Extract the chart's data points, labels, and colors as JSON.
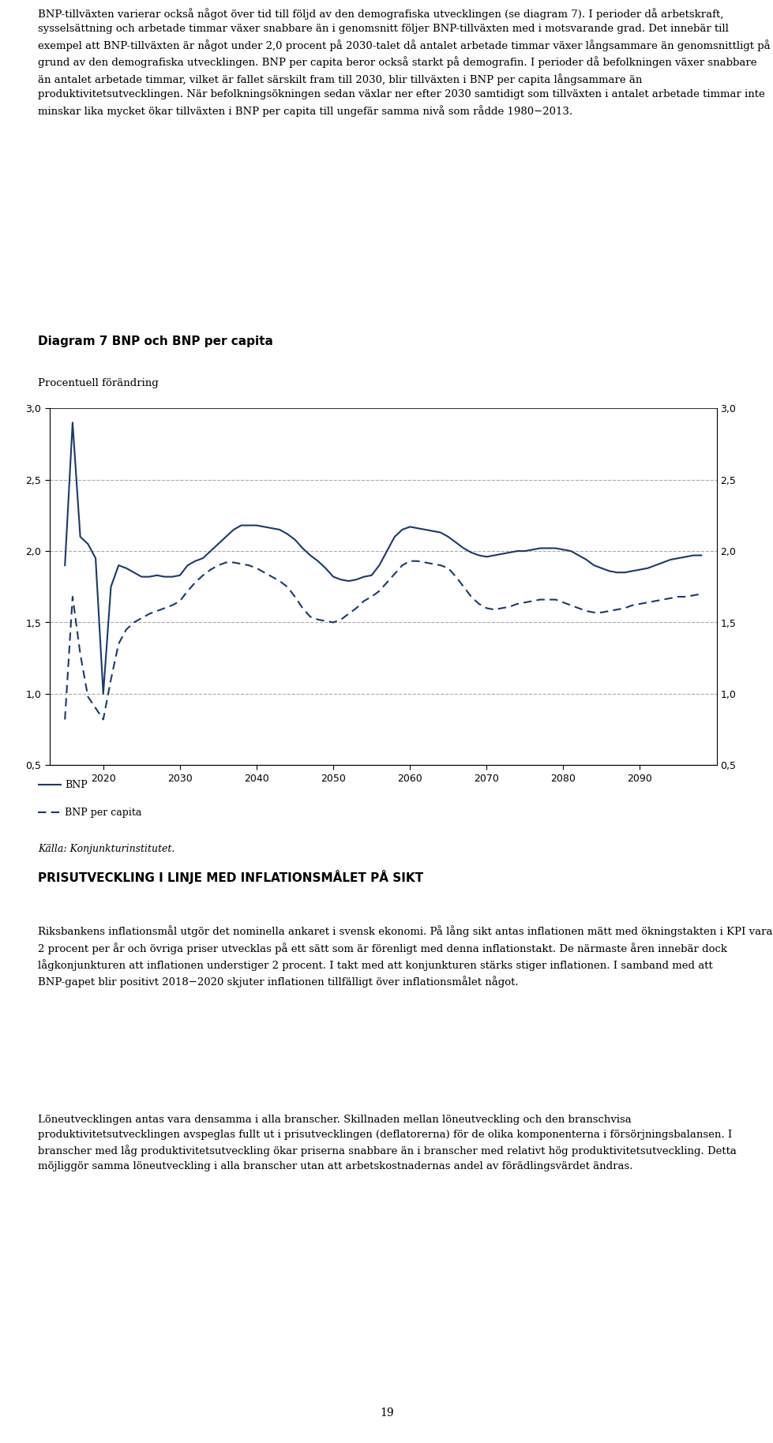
{
  "title": "Diagram 7 BNP och BNP per capita",
  "subtitle": "Procentuell förändring",
  "source": "Källa: Konjunkturinstitutet.",
  "legend_bnp": "BNP",
  "legend_bnp_capita": "BNP per capita",
  "ylim": [
    0.5,
    3.0
  ],
  "yticks": [
    0.5,
    1.0,
    1.5,
    2.0,
    2.5,
    3.0
  ],
  "grid_color": "#aaaaaa",
  "line_color": "#1a3a6b",
  "bg_color": "#ffffff",
  "text_color": "#000000",
  "para1": "BNP-tillväxten varierar också något över tid till följd av den demografiska utvecklingen (se diagram 7). I perioder då arbetskraft, sysselsättning och arbetade timmar växer snabbare än i genomsnitt följer BNP-tillväxten med i motsvarande grad. Det innebär till exempel att BNP-tillväxten är något under 2,0 procent på 2030-talet då antalet arbetade timmar växer långsammare än genomsnittligt på grund av den demografiska utvecklingen. BNP per capita beror också starkt på demografin. I perioder då befolkningen växer snabbare än antalet arbetade timmar, vilket är fallet särskilt fram till 2030, blir tillväxten i BNP per capita långsammare än produktivitetsutvecklingen. När befolkningsökningen sedan växlar ner efter 2030 samtidigt som tillväxten i antalet arbetade timmar inte minskar lika mycket ökar tillväxten i BNP per capita till ungefär samma nivå som rådde 1980−2013.",
  "para2": "PRISUTVECKLING I LINJE MED INFLATIONSMÅLET PÅ SIKT",
  "para3": "Riksbankens inflationsmål utgör det nominella ankaret i svensk ekonomi. På lång sikt antas inflationen mätt med ökningstakten i KPI vara 2 procent per år och övriga priser utvecklas på ett sätt som är förenligt med denna inflationstakt. De närmaste åren innebär dock lågkonjunkturen att inflationen understiger 2 procent. I takt med att konjunkturen stärks stiger inflationen. I samband med att BNP-gapet blir positivt 2018−2020 skjuter inflationen tillfälligt över inflationsmålet något.",
  "para4": "Löneutvecklingen antas vara densamma i alla branscher. Skillnaden mellan löneutveckling och den branschvisa produktivitetsutvecklingen avspeglas fullt ut i prisutvecklingen (deflatorerna) för de olika komponenterna i försörjningsbalansen. I branscher med låg produktivitetsutveckling ökar priserna snabbare än i branscher med relativt hög produktivitetsutveckling. Detta möjliggör samma löneutveckling i alla branscher utan att arbetskostnadernas andel av förädlingsvärdet ändras.",
  "page_number": "19",
  "bnp_x": [
    2015,
    2016,
    2017,
    2018,
    2019,
    2020,
    2021,
    2022,
    2023,
    2024,
    2025,
    2026,
    2027,
    2028,
    2029,
    2030,
    2031,
    2032,
    2033,
    2034,
    2035,
    2036,
    2037,
    2038,
    2039,
    2040,
    2041,
    2042,
    2043,
    2044,
    2045,
    2046,
    2047,
    2048,
    2049,
    2050,
    2051,
    2052,
    2053,
    2054,
    2055,
    2056,
    2057,
    2058,
    2059,
    2060,
    2061,
    2062,
    2063,
    2064,
    2065,
    2066,
    2067,
    2068,
    2069,
    2070,
    2071,
    2072,
    2073,
    2074,
    2075,
    2076,
    2077,
    2078,
    2079,
    2080,
    2081,
    2082,
    2083,
    2084,
    2085,
    2086,
    2087,
    2088,
    2089,
    2090,
    2091,
    2092,
    2093,
    2094,
    2095,
    2096,
    2097,
    2098
  ],
  "bnp_y": [
    1.9,
    2.9,
    2.1,
    2.05,
    1.95,
    1.0,
    1.75,
    1.9,
    1.88,
    1.85,
    1.82,
    1.82,
    1.83,
    1.82,
    1.82,
    1.83,
    1.9,
    1.93,
    1.95,
    2.0,
    2.05,
    2.1,
    2.15,
    2.18,
    2.18,
    2.18,
    2.17,
    2.16,
    2.15,
    2.12,
    2.08,
    2.02,
    1.97,
    1.93,
    1.88,
    1.82,
    1.8,
    1.79,
    1.8,
    1.82,
    1.83,
    1.9,
    2.0,
    2.1,
    2.15,
    2.17,
    2.16,
    2.15,
    2.14,
    2.13,
    2.1,
    2.06,
    2.02,
    1.99,
    1.97,
    1.96,
    1.97,
    1.98,
    1.99,
    2.0,
    2.0,
    2.01,
    2.02,
    2.02,
    2.02,
    2.01,
    2.0,
    1.97,
    1.94,
    1.9,
    1.88,
    1.86,
    1.85,
    1.85,
    1.86,
    1.87,
    1.88,
    1.9,
    1.92,
    1.94,
    1.95,
    1.96,
    1.97,
    1.97
  ],
  "cap_x": [
    2015,
    2016,
    2017,
    2018,
    2019,
    2020,
    2021,
    2022,
    2023,
    2024,
    2025,
    2026,
    2027,
    2028,
    2029,
    2030,
    2031,
    2032,
    2033,
    2034,
    2035,
    2036,
    2037,
    2038,
    2039,
    2040,
    2041,
    2042,
    2043,
    2044,
    2045,
    2046,
    2047,
    2048,
    2049,
    2050,
    2051,
    2052,
    2053,
    2054,
    2055,
    2056,
    2057,
    2058,
    2059,
    2060,
    2061,
    2062,
    2063,
    2064,
    2065,
    2066,
    2067,
    2068,
    2069,
    2070,
    2071,
    2072,
    2073,
    2074,
    2075,
    2076,
    2077,
    2078,
    2079,
    2080,
    2081,
    2082,
    2083,
    2084,
    2085,
    2086,
    2087,
    2088,
    2089,
    2090,
    2091,
    2092,
    2093,
    2094,
    2095,
    2096,
    2097,
    2098
  ],
  "cap_y": [
    0.82,
    1.68,
    1.28,
    0.98,
    0.9,
    0.82,
    1.1,
    1.35,
    1.45,
    1.5,
    1.53,
    1.56,
    1.58,
    1.6,
    1.62,
    1.65,
    1.72,
    1.78,
    1.83,
    1.87,
    1.9,
    1.92,
    1.92,
    1.91,
    1.9,
    1.88,
    1.85,
    1.82,
    1.79,
    1.75,
    1.68,
    1.6,
    1.54,
    1.52,
    1.51,
    1.5,
    1.52,
    1.56,
    1.6,
    1.65,
    1.68,
    1.72,
    1.78,
    1.84,
    1.9,
    1.93,
    1.93,
    1.92,
    1.91,
    1.9,
    1.88,
    1.82,
    1.75,
    1.68,
    1.63,
    1.6,
    1.59,
    1.6,
    1.61,
    1.63,
    1.64,
    1.65,
    1.66,
    1.66,
    1.66,
    1.64,
    1.62,
    1.6,
    1.58,
    1.57,
    1.57,
    1.58,
    1.59,
    1.6,
    1.62,
    1.63,
    1.64,
    1.65,
    1.66,
    1.67,
    1.68,
    1.68,
    1.69,
    1.7
  ]
}
